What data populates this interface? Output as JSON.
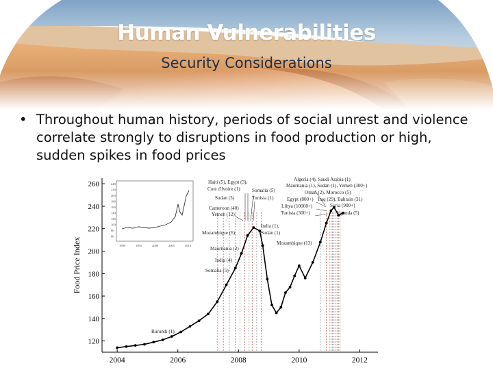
{
  "slide": {
    "title": "Human Vulnerabilities",
    "subtitle": "Security Considerations",
    "bullet": "Throughout human history, periods of social unrest and violence correlate strongly to disruptions in food production or high, sudden spikes in food prices"
  },
  "colors": {
    "sky": "#a9c4dc",
    "sand": "#d99a5e",
    "title": "#ffffff",
    "subtitle": "#1f2f4a"
  },
  "chart_data": {
    "type": "line",
    "ylabel": "Food Price Index",
    "xlim": [
      2003.5,
      2012.6
    ],
    "ylim": [
      110,
      265
    ],
    "xticks": [
      "2004",
      "2006",
      "2008",
      "2010",
      "2012"
    ],
    "yticks": [
      "120",
      "140",
      "160",
      "180",
      "200",
      "220",
      "240",
      "260"
    ],
    "series": [
      {
        "x": [
          2004.0,
          2004.3,
          2004.6,
          2004.9,
          2005.2,
          2005.5,
          2005.8,
          2006.1,
          2006.4,
          2006.7,
          2007.0,
          2007.3,
          2007.6,
          2007.9,
          2008.1,
          2008.3,
          2008.5,
          2008.7,
          2008.8,
          2008.95,
          2009.1,
          2009.25,
          2009.4,
          2009.55,
          2009.7,
          2009.85,
          2010.0,
          2010.2,
          2010.45,
          2010.7,
          2010.9,
          2011.05,
          2011.15,
          2011.3,
          2011.45
        ],
        "y": [
          114,
          115,
          116,
          117,
          119,
          121,
          124,
          128,
          133,
          138,
          144,
          155,
          170,
          185,
          198,
          214,
          221,
          218,
          205,
          175,
          152,
          145,
          150,
          163,
          168,
          178,
          187,
          176,
          190,
          208,
          225,
          236,
          239,
          232,
          234
        ]
      }
    ],
    "event_x": [
      2007.3,
      2007.5,
      2007.7,
      2007.9,
      2008.05,
      2008.2,
      2008.35,
      2008.45,
      2008.6,
      2008.75,
      2010.7,
      2010.9,
      2011.0,
      2011.05,
      2011.1,
      2011.15,
      2011.2,
      2011.25,
      2011.3,
      2011.35
    ],
    "annotations": [
      "Haiti (5), Egypt (3),",
      "Cote d'Ivoire (1)",
      "Somalia (5)",
      "Sudan (3)",
      "Tunisia (1)",
      "Cameroon (40)",
      "Yemen (12)",
      "Mozambique (6)",
      "Mauritania (2)",
      "India (4)",
      "Somalia (5)",
      "Burundi (1)",
      "India (1),",
      "Sudan (1)",
      "Mozambique (13)",
      "Algeria (4), Saudi Arabia (1)",
      "Mauritania (1), Sudan (1), Yemen (300+)",
      "Oman (2), Morocco (5)",
      "Egypt (800+)",
      "Iraq (29), Bahrain (31)",
      "Libya (10000+)",
      "Syria (900+)",
      "Tunisia (300+)",
      "Uganda (5)"
    ],
    "inset_xticks": [
      "1990",
      "1995",
      "2000",
      "2005",
      "2010"
    ],
    "inset_yticks": [
      "240",
      "220",
      "200",
      "180",
      "160",
      "140",
      "120",
      "100",
      "80",
      "60"
    ]
  }
}
